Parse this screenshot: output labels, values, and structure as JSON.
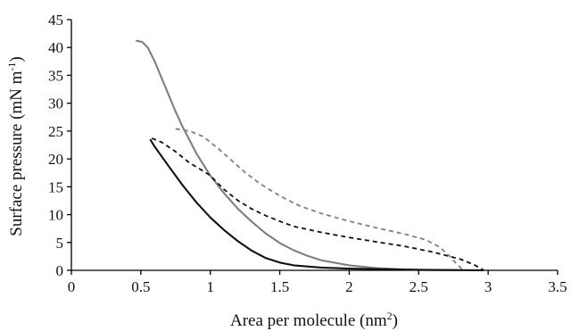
{
  "chart_data": {
    "type": "line",
    "xlabel": {
      "main": "Area per molecule (nm",
      "sup": "2",
      "tail": ")"
    },
    "ylabel": {
      "main": "Surface pressure (mN m",
      "sup": "-1",
      "tail": ")"
    },
    "xlim": [
      0,
      3.5
    ],
    "ylim": [
      0,
      45
    ],
    "xticks": [
      "0",
      "0.5",
      "1",
      "1.5",
      "2",
      "2.5",
      "3",
      "3.5"
    ],
    "yticks": [
      "0",
      "5",
      "10",
      "15",
      "20",
      "25",
      "30",
      "35",
      "40",
      "45"
    ],
    "grid": false,
    "legend": "none",
    "series": [
      {
        "color": "#7f7f7f",
        "dash": "solid",
        "points": [
          [
            0.47,
            41.2
          ],
          [
            0.51,
            41.0
          ],
          [
            0.55,
            40.0
          ],
          [
            0.6,
            37.5
          ],
          [
            0.65,
            34.5
          ],
          [
            0.7,
            31.5
          ],
          [
            0.75,
            28.5
          ],
          [
            0.8,
            25.8
          ],
          [
            0.9,
            21.0
          ],
          [
            1.0,
            17.0
          ],
          [
            1.1,
            13.8
          ],
          [
            1.2,
            11.0
          ],
          [
            1.3,
            8.7
          ],
          [
            1.4,
            6.6
          ],
          [
            1.5,
            4.9
          ],
          [
            1.6,
            3.6
          ],
          [
            1.7,
            2.6
          ],
          [
            1.8,
            1.8
          ],
          [
            2.0,
            0.9
          ],
          [
            2.2,
            0.4
          ],
          [
            2.4,
            0.15
          ],
          [
            2.6,
            0.05
          ],
          [
            2.8,
            0.0
          ]
        ]
      },
      {
        "color": "#111111",
        "dash": "solid",
        "points": [
          [
            0.57,
            23.4
          ],
          [
            0.6,
            22.2
          ],
          [
            0.7,
            18.7
          ],
          [
            0.8,
            15.3
          ],
          [
            0.9,
            12.2
          ],
          [
            1.0,
            9.5
          ],
          [
            1.1,
            7.2
          ],
          [
            1.2,
            5.2
          ],
          [
            1.3,
            3.5
          ],
          [
            1.4,
            2.2
          ],
          [
            1.5,
            1.4
          ],
          [
            1.6,
            0.9
          ],
          [
            1.8,
            0.5
          ],
          [
            2.0,
            0.3
          ],
          [
            2.5,
            0.1
          ],
          [
            2.96,
            0.0
          ]
        ]
      },
      {
        "color": "#111111",
        "dash": "5 4",
        "points": [
          [
            0.58,
            23.7
          ],
          [
            0.65,
            23.0
          ],
          [
            0.75,
            21.3
          ],
          [
            0.85,
            19.3
          ],
          [
            0.95,
            17.8
          ],
          [
            1.0,
            17.0
          ],
          [
            1.1,
            14.5
          ],
          [
            1.2,
            12.5
          ],
          [
            1.3,
            11.0
          ],
          [
            1.4,
            9.8
          ],
          [
            1.5,
            8.8
          ],
          [
            1.6,
            7.9
          ],
          [
            1.8,
            6.8
          ],
          [
            2.0,
            5.9
          ],
          [
            2.2,
            5.1
          ],
          [
            2.4,
            4.3
          ],
          [
            2.6,
            3.3
          ],
          [
            2.8,
            2.0
          ],
          [
            2.9,
            1.0
          ],
          [
            2.97,
            0.0
          ]
        ]
      },
      {
        "color": "#7f7f7f",
        "dash": "5 4",
        "points": [
          [
            0.75,
            25.4
          ],
          [
            0.85,
            25.0
          ],
          [
            0.95,
            24.0
          ],
          [
            1.05,
            22.0
          ],
          [
            1.15,
            19.8
          ],
          [
            1.25,
            17.6
          ],
          [
            1.35,
            15.7
          ],
          [
            1.45,
            14.1
          ],
          [
            1.55,
            12.7
          ],
          [
            1.65,
            11.5
          ],
          [
            1.8,
            10.2
          ],
          [
            2.0,
            8.8
          ],
          [
            2.2,
            7.6
          ],
          [
            2.4,
            6.5
          ],
          [
            2.55,
            5.5
          ],
          [
            2.65,
            4.2
          ],
          [
            2.72,
            2.6
          ],
          [
            2.78,
            1.0
          ],
          [
            2.82,
            0.0
          ]
        ]
      }
    ]
  }
}
